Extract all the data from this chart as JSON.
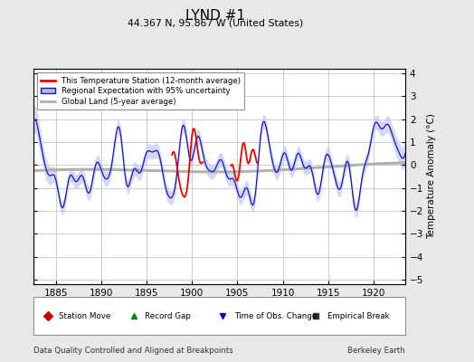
{
  "title": "LYND #1",
  "subtitle": "44.367 N, 95.867 W (United States)",
  "xlabel_left": "Data Quality Controlled and Aligned at Breakpoints",
  "xlabel_right": "Berkeley Earth",
  "ylabel": "Temperature Anomaly (°C)",
  "xlim": [
    1882.5,
    1923.5
  ],
  "ylim": [
    -5.2,
    4.2
  ],
  "yticks": [
    -5,
    -4,
    -3,
    -2,
    -1,
    0,
    1,
    2,
    3,
    4
  ],
  "xticks": [
    1885,
    1890,
    1895,
    1900,
    1905,
    1910,
    1915,
    1920
  ],
  "background_color": "#e8e8e8",
  "plot_bg_color": "#ffffff",
  "grid_color": "#cccccc",
  "blue_line_color": "#1111cc",
  "blue_fill_color": "#b0b8f0",
  "red_line_color": "#ee0000",
  "gray_line_color": "#b0b0b0",
  "legend_items": [
    "This Temperature Station (12-month average)",
    "Regional Expectation with 95% uncertainty",
    "Global Land (5-year average)"
  ],
  "bottom_legend": [
    {
      "marker": "D",
      "color": "#cc0000",
      "label": "Station Move"
    },
    {
      "marker": "^",
      "color": "#008800",
      "label": "Record Gap"
    },
    {
      "marker": "v",
      "color": "#0000cc",
      "label": "Time of Obs. Change"
    },
    {
      "marker": "s",
      "color": "#333333",
      "label": "Empirical Break"
    }
  ]
}
